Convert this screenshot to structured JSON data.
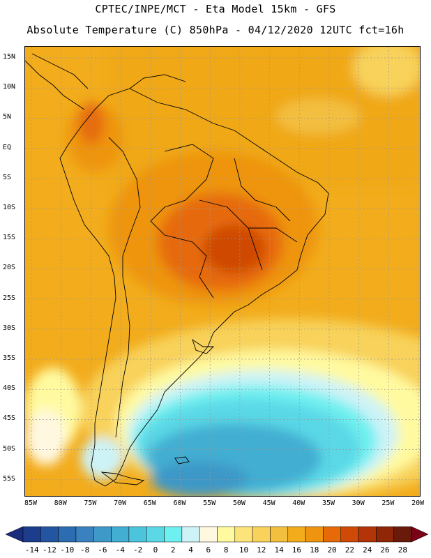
{
  "header": {
    "line1": "CPTEC/INPE/MCT  -   Eta Model 15km  -  GFS",
    "line2": "Absolute Temperature (C) 850hPa - 04/12/2020 12UTC fct=16h"
  },
  "map": {
    "lat_labels": [
      "15N",
      "10N",
      "5N",
      "EQ",
      "5S",
      "10S",
      "15S",
      "20S",
      "25S",
      "30S",
      "35S",
      "40S",
      "45S",
      "50S",
      "55S"
    ],
    "lon_labels": [
      "85W",
      "80W",
      "75W",
      "70W",
      "65W",
      "60W",
      "55W",
      "50W",
      "45W",
      "40W",
      "35W",
      "30W",
      "25W",
      "20W"
    ]
  },
  "colorbar": {
    "labels": [
      "-14",
      "-12",
      "-10",
      "-8",
      "-6",
      "-4",
      "-2",
      "0",
      "2",
      "4",
      "6",
      "8",
      "10",
      "12",
      "14",
      "16",
      "18",
      "20",
      "22",
      "24",
      "26",
      "28"
    ],
    "colors": [
      "#1c3d8c",
      "#2455a0",
      "#2c6cb0",
      "#3a82bf",
      "#3e98c8",
      "#42aed2",
      "#4cc4dc",
      "#5ad8e6",
      "#6ff0f0",
      "#cdf3f7",
      "#fff8e0",
      "#fffaa0",
      "#fde47a",
      "#f8d25a",
      "#f3bf3f",
      "#f2ac1c",
      "#ee9410",
      "#e66a08",
      "#cf4a06",
      "#b23407",
      "#8e2607",
      "#6a1a0a"
    ],
    "left_arrow_color": "#1a2c7c",
    "right_arrow_color": "#7a0018"
  }
}
